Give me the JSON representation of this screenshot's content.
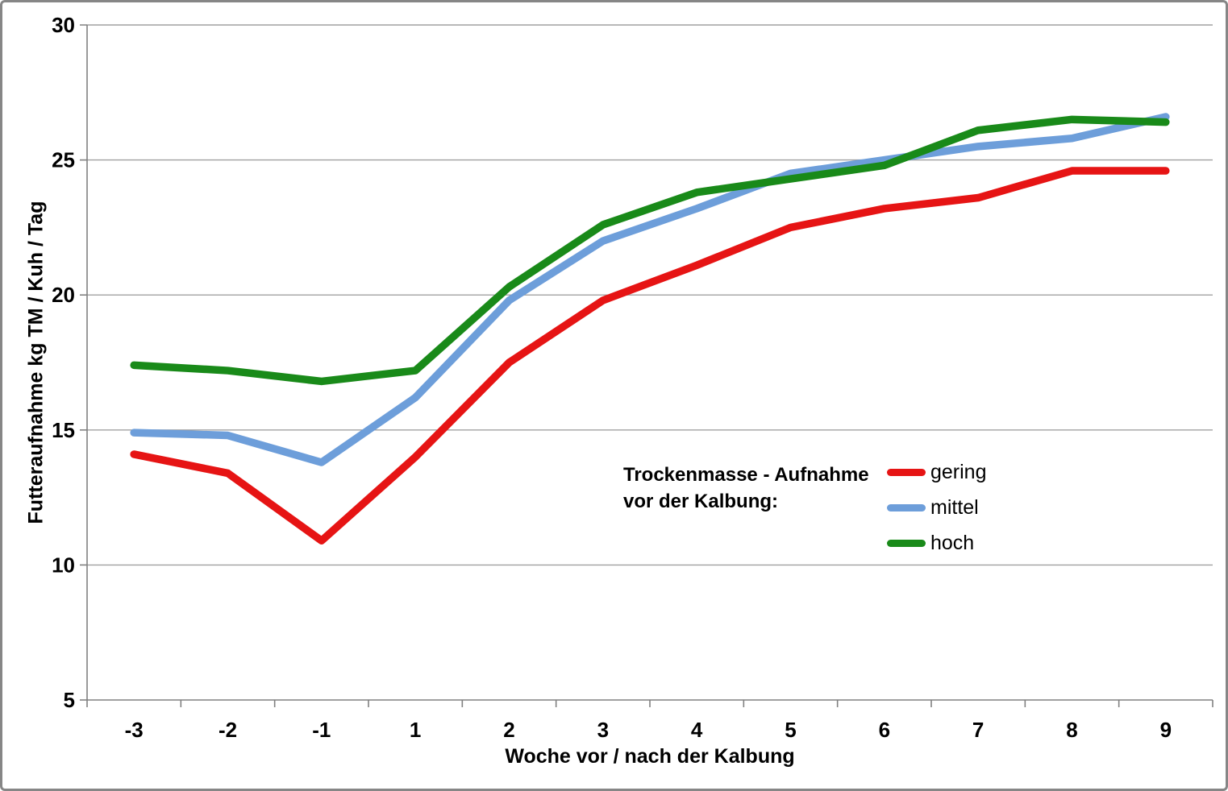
{
  "chart_data": {
    "type": "line",
    "title": "",
    "xlabel": "Woche vor / nach der Kalbung",
    "ylabel": "Futteraufnahme kg TM / Kuh / Tag",
    "categories": [
      "-3",
      "-2",
      "-1",
      "1",
      "2",
      "3",
      "4",
      "5",
      "6",
      "7",
      "8",
      "9"
    ],
    "ylim": [
      5,
      30
    ],
    "ytick_interval": 5,
    "ytick_labels": [
      "5",
      "10",
      "15",
      "20",
      "25",
      "30"
    ],
    "grid": "horizontal-only",
    "legend_position": "center-right-inside",
    "series": [
      {
        "name": "gering",
        "color": "#e61414",
        "values": [
          14.1,
          13.4,
          10.9,
          14.0,
          17.5,
          19.8,
          21.1,
          22.5,
          23.2,
          23.6,
          24.6,
          24.6
        ]
      },
      {
        "name": "mittel",
        "color": "#6d9eda",
        "values": [
          14.9,
          14.8,
          13.8,
          16.2,
          19.8,
          22.0,
          23.2,
          24.5,
          25.0,
          25.5,
          25.8,
          26.6
        ]
      },
      {
        "name": "hoch",
        "color": "#198a19",
        "values": [
          17.4,
          17.2,
          16.8,
          17.2,
          20.3,
          22.6,
          23.8,
          24.3,
          24.8,
          26.1,
          26.5,
          26.4
        ]
      }
    ],
    "legend": {
      "title_line1": "Trockenmasse - Aufnahme",
      "title_line2": "vor der Kalbung:"
    }
  },
  "colors": {
    "gridline": "#a0a0a0",
    "axis": "#808080",
    "text": "#000000",
    "background": "#ffffff",
    "frame": "#868686"
  }
}
